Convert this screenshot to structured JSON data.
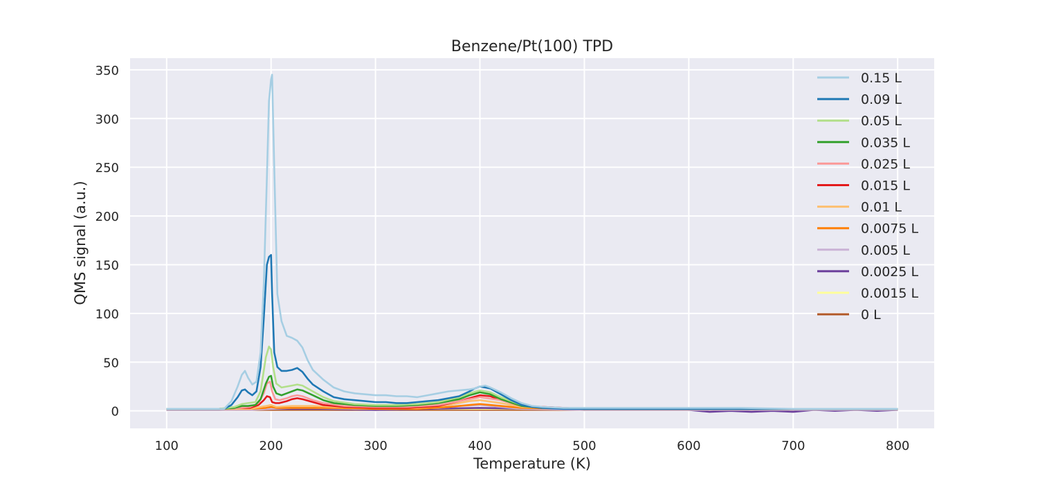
{
  "chart_data": {
    "type": "line",
    "title": "Benzene/Pt(100) TPD",
    "xlabel": "Temperature (K)",
    "ylabel": "QMS signal (a.u.)",
    "xlim": [
      65,
      835
    ],
    "ylim": [
      -18,
      362
    ],
    "xticks": [
      100,
      200,
      300,
      400,
      500,
      600,
      700,
      800
    ],
    "yticks": [
      0,
      50,
      100,
      150,
      200,
      250,
      300,
      350
    ],
    "grid": true,
    "legend_position": "top-right",
    "series": [
      {
        "name": "0.15 L",
        "color": "#a6cee3",
        "x": [
          100,
          130,
          155,
          162,
          168,
          172,
          175,
          178,
          182,
          186,
          190,
          193,
          196,
          198,
          200,
          201,
          203,
          206,
          210,
          215,
          220,
          225,
          230,
          235,
          240,
          250,
          260,
          270,
          280,
          290,
          300,
          310,
          320,
          330,
          340,
          350,
          360,
          370,
          380,
          390,
          395,
          400,
          405,
          410,
          420,
          430,
          440,
          450,
          460,
          480,
          500,
          550,
          600,
          650,
          700,
          750,
          800
        ],
        "y": [
          2,
          2,
          2,
          10,
          25,
          37,
          41,
          34,
          27,
          30,
          60,
          130,
          240,
          318,
          340,
          345,
          250,
          120,
          92,
          77,
          75,
          72,
          65,
          52,
          42,
          32,
          24,
          20,
          18,
          17,
          16,
          16,
          15,
          15,
          14,
          16,
          18,
          20,
          21,
          22,
          23,
          25,
          26,
          24,
          19,
          13,
          8,
          5,
          4,
          3,
          3,
          3,
          3,
          3,
          2,
          2,
          2
        ]
      },
      {
        "name": "0.09 L",
        "color": "#1f78b4",
        "x": [
          100,
          130,
          155,
          162,
          168,
          172,
          175,
          178,
          182,
          186,
          190,
          193,
          196,
          198,
          200,
          201,
          203,
          206,
          210,
          215,
          220,
          225,
          230,
          235,
          240,
          250,
          260,
          270,
          280,
          290,
          300,
          310,
          320,
          330,
          340,
          350,
          360,
          370,
          380,
          390,
          395,
          400,
          405,
          410,
          420,
          430,
          440,
          450,
          460,
          480,
          500,
          550,
          600,
          650,
          700,
          750,
          800
        ],
        "y": [
          2,
          2,
          2,
          6,
          14,
          21,
          22,
          19,
          16,
          20,
          45,
          95,
          150,
          158,
          160,
          120,
          60,
          45,
          41,
          41,
          42,
          44,
          40,
          33,
          27,
          20,
          14,
          12,
          11,
          10,
          9,
          9,
          8,
          8,
          9,
          10,
          11,
          13,
          15,
          20,
          23,
          25,
          24,
          23,
          17,
          11,
          6,
          4,
          3,
          2,
          2,
          2,
          2,
          2,
          2,
          2,
          2
        ]
      },
      {
        "name": "0.05 L",
        "color": "#b2df8a",
        "x": [
          100,
          150,
          165,
          172,
          178,
          185,
          190,
          195,
          198,
          200,
          202,
          205,
          210,
          215,
          220,
          225,
          230,
          240,
          250,
          260,
          280,
          300,
          320,
          340,
          360,
          380,
          390,
          400,
          410,
          420,
          440,
          460,
          500,
          600,
          700,
          800
        ],
        "y": [
          2,
          2,
          4,
          7,
          8,
          9,
          20,
          55,
          66,
          63,
          45,
          28,
          24,
          25,
          26,
          27,
          26,
          20,
          14,
          10,
          7,
          6,
          6,
          7,
          9,
          14,
          18,
          21,
          19,
          14,
          6,
          3,
          2,
          2,
          2,
          2
        ]
      },
      {
        "name": "0.035 L",
        "color": "#33a02c",
        "x": [
          100,
          150,
          165,
          172,
          178,
          185,
          190,
          195,
          198,
          200,
          202,
          205,
          210,
          215,
          220,
          225,
          230,
          240,
          250,
          260,
          280,
          300,
          320,
          340,
          360,
          380,
          390,
          400,
          410,
          420,
          440,
          460,
          500,
          600,
          700,
          800
        ],
        "y": [
          2,
          2,
          3,
          5,
          5,
          6,
          12,
          28,
          35,
          36,
          25,
          18,
          16,
          18,
          20,
          22,
          21,
          16,
          11,
          8,
          6,
          5,
          5,
          6,
          8,
          12,
          16,
          19,
          17,
          12,
          5,
          3,
          2,
          2,
          2,
          2
        ]
      },
      {
        "name": "0.025 L",
        "color": "#fb9a99",
        "x": [
          100,
          150,
          170,
          180,
          188,
          193,
          196,
          199,
          201,
          204,
          208,
          215,
          220,
          225,
          230,
          240,
          250,
          270,
          300,
          330,
          360,
          380,
          400,
          420,
          440,
          500,
          600,
          800
        ],
        "y": [
          2,
          2,
          3,
          4,
          8,
          18,
          28,
          30,
          20,
          12,
          11,
          13,
          15,
          16,
          15,
          11,
          8,
          5,
          4,
          4,
          6,
          10,
          14,
          11,
          5,
          2,
          2,
          2
        ]
      },
      {
        "name": "0.015 L",
        "color": "#e31a1c",
        "x": [
          100,
          150,
          170,
          180,
          188,
          193,
          196,
          199,
          201,
          204,
          208,
          215,
          220,
          225,
          230,
          240,
          250,
          270,
          300,
          330,
          360,
          380,
          400,
          410,
          420,
          440,
          500,
          600,
          800
        ],
        "y": [
          2,
          2,
          3,
          3,
          6,
          11,
          15,
          14,
          9,
          8,
          8,
          10,
          12,
          13,
          12,
          9,
          6,
          4,
          3,
          3,
          5,
          10,
          16,
          15,
          11,
          5,
          2,
          2,
          2
        ]
      },
      {
        "name": "0.01 L",
        "color": "#fdbf6f",
        "x": [
          100,
          150,
          180,
          195,
          200,
          205,
          220,
          240,
          260,
          300,
          340,
          370,
          390,
          400,
          420,
          440,
          500,
          800
        ],
        "y": [
          2,
          2,
          2,
          5,
          6,
          4,
          5,
          5,
          4,
          3,
          3,
          6,
          10,
          11,
          8,
          4,
          2,
          2
        ]
      },
      {
        "name": "0.0075 L",
        "color": "#ff7f00",
        "x": [
          100,
          150,
          180,
          195,
          200,
          205,
          220,
          240,
          260,
          300,
          340,
          370,
          390,
          400,
          420,
          440,
          500,
          800
        ],
        "y": [
          2,
          2,
          2,
          3,
          4,
          3,
          3,
          3,
          3,
          2,
          2,
          4,
          6,
          7,
          5,
          3,
          2,
          2
        ]
      },
      {
        "name": "0.005 L",
        "color": "#cab2d6",
        "x": [
          100,
          150,
          180,
          200,
          220,
          240,
          280,
          320,
          360,
          380,
          400,
          420,
          440,
          500,
          600,
          700,
          800
        ],
        "y": [
          1,
          1,
          1,
          2,
          3,
          3,
          2,
          2,
          3,
          5,
          6,
          4,
          2,
          1,
          1,
          1,
          1
        ]
      },
      {
        "name": "0.0025 L",
        "color": "#6a3d9a",
        "x": [
          100,
          150,
          200,
          250,
          300,
          350,
          400,
          450,
          500,
          550,
          600,
          620,
          640,
          660,
          680,
          700,
          720,
          740,
          760,
          780,
          800
        ],
        "y": [
          1,
          1,
          2,
          2,
          1,
          2,
          3,
          2,
          1,
          1,
          1,
          -1,
          0,
          -1,
          0,
          -1,
          1,
          0,
          1,
          0,
          1
        ]
      },
      {
        "name": "0.0015 L",
        "color": "#ffff99",
        "x": [
          100,
          150,
          200,
          250,
          300,
          350,
          400,
          450,
          500,
          550,
          600,
          700,
          800
        ],
        "y": [
          2,
          2,
          2,
          2,
          2,
          2,
          2,
          2,
          2,
          2,
          2,
          2,
          2
        ]
      },
      {
        "name": "0 L",
        "color": "#b15928",
        "x": [
          100,
          150,
          200,
          250,
          300,
          350,
          400,
          450,
          500,
          550,
          600,
          650,
          700,
          750,
          800
        ],
        "y": [
          1,
          1,
          1,
          1,
          1,
          1,
          1,
          1,
          1,
          1,
          1,
          1,
          1,
          1,
          1
        ]
      }
    ]
  }
}
